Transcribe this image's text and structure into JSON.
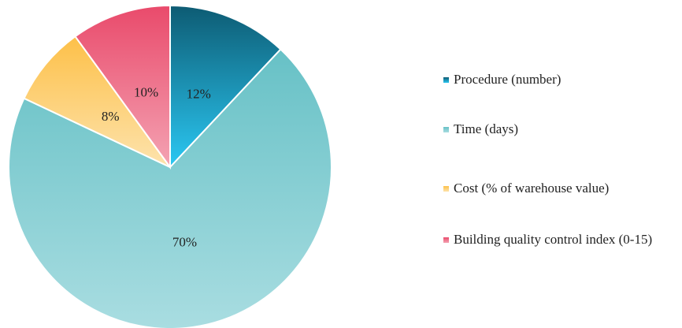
{
  "chart_data": {
    "type": "pie",
    "categories": [
      "Procedure (number)",
      "Time (days)",
      "Cost (% of warehouse value)",
      "Building quality control index (0-15)"
    ],
    "values": [
      12,
      70,
      8,
      10
    ],
    "value_labels": [
      "12%",
      "70%",
      "8%",
      "10%"
    ],
    "colors": [
      [
        "#0d5b73",
        "#2bc8f3"
      ],
      [
        "#67c1c6",
        "#a9dde1"
      ],
      [
        "#fdc048",
        "#fde3ad"
      ],
      [
        "#e94a6b",
        "#f4a3b3"
      ]
    ],
    "legend": "right"
  }
}
